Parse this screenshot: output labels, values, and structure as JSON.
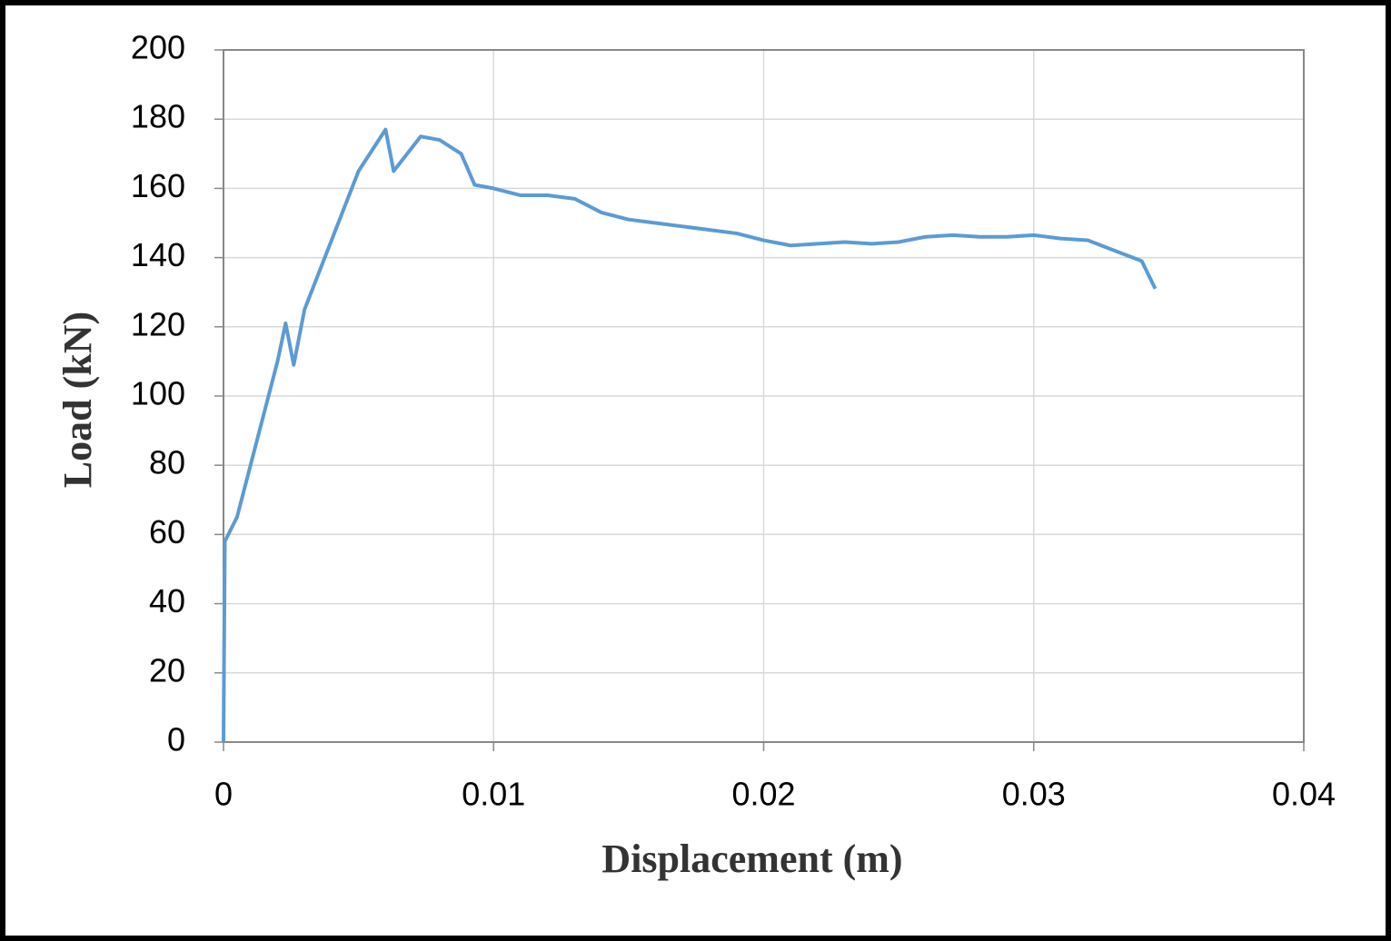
{
  "chart_data": {
    "type": "line",
    "x_label": "Displacement  (m)",
    "y_label": "Load (kN)",
    "xlim": [
      0,
      0.04
    ],
    "xticks": [
      0,
      0.01,
      0.02,
      0.03,
      0.04
    ],
    "ylim": [
      0,
      200
    ],
    "yticks": [
      0,
      20,
      40,
      60,
      80,
      100,
      120,
      140,
      160,
      180,
      200
    ],
    "grid": true,
    "x": [
      0,
      5e-05,
      0.0005,
      0.001,
      0.0015,
      0.002,
      0.0023,
      0.0026,
      0.003,
      0.0035,
      0.004,
      0.0045,
      0.005,
      0.0055,
      0.006,
      0.0063,
      0.0068,
      0.0073,
      0.008,
      0.0088,
      0.0093,
      0.01,
      0.011,
      0.012,
      0.013,
      0.014,
      0.015,
      0.016,
      0.017,
      0.018,
      0.019,
      0.02,
      0.021,
      0.022,
      0.023,
      0.024,
      0.025,
      0.026,
      0.027,
      0.028,
      0.029,
      0.03,
      0.031,
      0.032,
      0.033,
      0.034,
      0.0345
    ],
    "series": [
      {
        "color": "#5b9bd5",
        "values": [
          0,
          58,
          65,
          80,
          95,
          110,
          121,
          109,
          125,
          135,
          145,
          155,
          165,
          171,
          177,
          165,
          170,
          175,
          174,
          170,
          161,
          160,
          158,
          158,
          157,
          153,
          151,
          150,
          149,
          148,
          147,
          145,
          143.5,
          144,
          144.5,
          144,
          144.5,
          146,
          146.5,
          146,
          146,
          146.5,
          145.5,
          145,
          142,
          139,
          131
        ]
      }
    ]
  }
}
